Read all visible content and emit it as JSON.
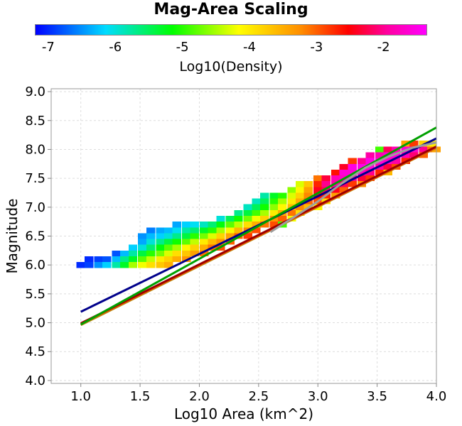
{
  "chart_data": {
    "type": "heatmap",
    "title": "Mag-Area Scaling",
    "xlabel": "Log10 Area (km^2)",
    "ylabel": "Magnitude",
    "xlim": [
      0.75,
      4.0
    ],
    "ylim": [
      3.95,
      9.05
    ],
    "xticks": [
      "1.0",
      "1.5",
      "2.0",
      "2.5",
      "3.0",
      "3.5",
      "4.0"
    ],
    "yticks": [
      "4.0",
      "4.5",
      "5.0",
      "5.5",
      "6.0",
      "6.5",
      "7.0",
      "7.5",
      "8.0",
      "8.5",
      "9.0"
    ],
    "grid": true,
    "colorbar": {
      "label": "Log10(Density)",
      "ticks": [
        "-7",
        "-6",
        "-5",
        "-4",
        "-3",
        "-2"
      ],
      "range": [
        -7.2,
        -1.35
      ]
    },
    "cell_size": {
      "dx": 0.074,
      "dy": 0.1
    },
    "density_cells": [
      [
        1.0,
        6.0,
        -7.0
      ],
      [
        1.07,
        6.0,
        -6.9
      ],
      [
        1.07,
        6.1,
        -7.0
      ],
      [
        1.15,
        6.0,
        -6.5
      ],
      [
        1.15,
        6.1,
        -6.9
      ],
      [
        1.22,
        6.0,
        -6.2
      ],
      [
        1.22,
        6.1,
        -6.8
      ],
      [
        1.3,
        6.0,
        -5.8
      ],
      [
        1.3,
        6.1,
        -6.3
      ],
      [
        1.3,
        6.2,
        -6.8
      ],
      [
        1.37,
        6.0,
        -5.3
      ],
      [
        1.37,
        6.1,
        -5.7
      ],
      [
        1.37,
        6.2,
        -6.3
      ],
      [
        1.44,
        6.0,
        -4.5
      ],
      [
        1.44,
        6.1,
        -5.3
      ],
      [
        1.44,
        6.2,
        -5.8
      ],
      [
        1.44,
        6.3,
        -6.2
      ],
      [
        1.52,
        6.0,
        -4.2
      ],
      [
        1.52,
        6.1,
        -4.8
      ],
      [
        1.52,
        6.2,
        -5.4
      ],
      [
        1.52,
        6.3,
        -6.0
      ],
      [
        1.52,
        6.4,
        -6.4
      ],
      [
        1.52,
        6.5,
        -6.5
      ],
      [
        1.59,
        6.0,
        -3.9
      ],
      [
        1.59,
        6.1,
        -4.4
      ],
      [
        1.59,
        6.2,
        -5.0
      ],
      [
        1.59,
        6.3,
        -5.6
      ],
      [
        1.59,
        6.4,
        -6.0
      ],
      [
        1.59,
        6.5,
        -6.3
      ],
      [
        1.59,
        6.6,
        -6.6
      ],
      [
        1.67,
        6.0,
        -3.7
      ],
      [
        1.67,
        6.1,
        -4.0
      ],
      [
        1.67,
        6.2,
        -4.7
      ],
      [
        1.67,
        6.3,
        -5.2
      ],
      [
        1.67,
        6.4,
        -5.7
      ],
      [
        1.67,
        6.5,
        -6.2
      ],
      [
        1.67,
        6.6,
        -6.4
      ],
      [
        1.74,
        6.0,
        -3.5
      ],
      [
        1.74,
        6.1,
        -3.8
      ],
      [
        1.74,
        6.2,
        -4.3
      ],
      [
        1.74,
        6.3,
        -4.8
      ],
      [
        1.74,
        6.4,
        -5.4
      ],
      [
        1.74,
        6.5,
        -6.0
      ],
      [
        1.74,
        6.6,
        -6.3
      ],
      [
        1.81,
        6.1,
        -3.5
      ],
      [
        1.81,
        6.2,
        -3.9
      ],
      [
        1.81,
        6.3,
        -4.5
      ],
      [
        1.81,
        6.4,
        -5.1
      ],
      [
        1.81,
        6.5,
        -5.7
      ],
      [
        1.81,
        6.6,
        -6.1
      ],
      [
        1.81,
        6.7,
        -6.4
      ],
      [
        1.89,
        6.1,
        -3.3
      ],
      [
        1.89,
        6.2,
        -3.7
      ],
      [
        1.89,
        6.3,
        -4.1
      ],
      [
        1.89,
        6.4,
        -4.8
      ],
      [
        1.89,
        6.5,
        -5.4
      ],
      [
        1.89,
        6.6,
        -5.8
      ],
      [
        1.89,
        6.7,
        -6.2
      ],
      [
        1.96,
        6.2,
        -3.4
      ],
      [
        1.96,
        6.3,
        -3.8
      ],
      [
        1.96,
        6.4,
        -4.4
      ],
      [
        1.96,
        6.5,
        -5.0
      ],
      [
        1.96,
        6.6,
        -5.6
      ],
      [
        1.96,
        6.7,
        -6.1
      ],
      [
        2.04,
        6.2,
        -3.1
      ],
      [
        2.04,
        6.3,
        -3.5
      ],
      [
        2.04,
        6.4,
        -4.0
      ],
      [
        2.04,
        6.5,
        -4.7
      ],
      [
        2.04,
        6.6,
        -5.3
      ],
      [
        2.04,
        6.7,
        -5.9
      ],
      [
        2.11,
        6.3,
        -3.1
      ],
      [
        2.11,
        6.4,
        -3.6
      ],
      [
        2.11,
        6.5,
        -4.3
      ],
      [
        2.11,
        6.6,
        -5.0
      ],
      [
        2.11,
        6.7,
        -5.6
      ],
      [
        2.18,
        6.3,
        -2.9
      ],
      [
        2.18,
        6.4,
        -3.3
      ],
      [
        2.18,
        6.5,
        -3.8
      ],
      [
        2.18,
        6.6,
        -4.5
      ],
      [
        2.18,
        6.7,
        -5.2
      ],
      [
        2.18,
        6.8,
        -6.0
      ],
      [
        2.26,
        6.4,
        -3.0
      ],
      [
        2.26,
        6.5,
        -3.4
      ],
      [
        2.26,
        6.6,
        -4.1
      ],
      [
        2.26,
        6.7,
        -4.8
      ],
      [
        2.26,
        6.8,
        -5.5
      ],
      [
        2.33,
        6.5,
        -3.0
      ],
      [
        2.33,
        6.6,
        -3.6
      ],
      [
        2.33,
        6.7,
        -4.4
      ],
      [
        2.33,
        6.8,
        -5.1
      ],
      [
        2.33,
        6.9,
        -5.7
      ],
      [
        2.41,
        6.5,
        -2.8
      ],
      [
        2.41,
        6.6,
        -3.2
      ],
      [
        2.41,
        6.7,
        -3.9
      ],
      [
        2.41,
        6.8,
        -4.7
      ],
      [
        2.41,
        6.9,
        -5.4
      ],
      [
        2.41,
        7.0,
        -5.9
      ],
      [
        2.48,
        6.6,
        -2.9
      ],
      [
        2.48,
        6.7,
        -3.5
      ],
      [
        2.48,
        6.8,
        -4.2
      ],
      [
        2.48,
        6.9,
        -4.9
      ],
      [
        2.48,
        7.0,
        -5.5
      ],
      [
        2.48,
        7.1,
        -5.9
      ],
      [
        2.55,
        6.7,
        -3.1
      ],
      [
        2.55,
        6.8,
        -3.8
      ],
      [
        2.55,
        6.9,
        -4.5
      ],
      [
        2.55,
        7.0,
        -5.1
      ],
      [
        2.55,
        7.1,
        -5.5
      ],
      [
        2.55,
        7.2,
        -5.8
      ],
      [
        2.63,
        6.7,
        -2.9
      ],
      [
        2.63,
        6.8,
        -3.3
      ],
      [
        2.63,
        6.9,
        -4.0
      ],
      [
        2.63,
        7.0,
        -4.6
      ],
      [
        2.63,
        7.1,
        -5.0
      ],
      [
        2.63,
        7.2,
        -5.3
      ],
      [
        2.7,
        6.7,
        -4.9
      ],
      [
        2.7,
        6.8,
        -3.0
      ],
      [
        2.7,
        6.9,
        -3.5
      ],
      [
        2.7,
        7.0,
        -4.1
      ],
      [
        2.7,
        7.1,
        -4.5
      ],
      [
        2.7,
        7.2,
        -5.0
      ],
      [
        2.78,
        6.8,
        -4.2
      ],
      [
        2.78,
        6.9,
        -3.1
      ],
      [
        2.78,
        7.0,
        -3.6
      ],
      [
        2.78,
        7.1,
        -4.0
      ],
      [
        2.78,
        7.2,
        -4.3
      ],
      [
        2.78,
        7.3,
        -4.6
      ],
      [
        2.85,
        6.9,
        -3.9
      ],
      [
        2.85,
        7.0,
        -3.2
      ],
      [
        2.85,
        7.1,
        -3.5
      ],
      [
        2.85,
        7.2,
        -3.8
      ],
      [
        2.85,
        7.3,
        -4.1
      ],
      [
        2.85,
        7.4,
        -4.3
      ],
      [
        2.92,
        7.0,
        -3.6
      ],
      [
        2.92,
        7.1,
        -3.0
      ],
      [
        2.92,
        7.2,
        -3.2
      ],
      [
        2.92,
        7.3,
        -3.4
      ],
      [
        2.92,
        7.4,
        -3.7
      ],
      [
        3.0,
        7.0,
        -4.1
      ],
      [
        3.0,
        7.1,
        -2.9
      ],
      [
        3.0,
        7.2,
        -2.6
      ],
      [
        3.0,
        7.3,
        -2.4
      ],
      [
        3.0,
        7.4,
        -2.7
      ],
      [
        3.0,
        7.5,
        -3.1
      ],
      [
        3.07,
        7.1,
        -3.9
      ],
      [
        3.07,
        7.2,
        -2.7
      ],
      [
        3.07,
        7.3,
        -2.2
      ],
      [
        3.07,
        7.4,
        -2.0
      ],
      [
        3.07,
        7.5,
        -2.3
      ],
      [
        3.15,
        7.2,
        -3.4
      ],
      [
        3.15,
        7.3,
        -2.4
      ],
      [
        3.15,
        7.4,
        -1.9
      ],
      [
        3.15,
        7.5,
        -1.8
      ],
      [
        3.15,
        7.6,
        -2.6
      ],
      [
        3.22,
        7.3,
        -3.0
      ],
      [
        3.22,
        7.4,
        -2.2
      ],
      [
        3.22,
        7.5,
        -1.7
      ],
      [
        3.22,
        7.6,
        -1.6
      ],
      [
        3.22,
        7.7,
        -2.4
      ],
      [
        3.29,
        7.4,
        -2.8
      ],
      [
        3.29,
        7.5,
        -2.0
      ],
      [
        3.29,
        7.6,
        -1.6
      ],
      [
        3.29,
        7.7,
        -1.5
      ],
      [
        3.29,
        7.8,
        -2.8
      ],
      [
        3.37,
        7.4,
        -3.2
      ],
      [
        3.37,
        7.5,
        -2.3
      ],
      [
        3.37,
        7.6,
        -1.7
      ],
      [
        3.37,
        7.7,
        -1.5
      ],
      [
        3.37,
        7.8,
        -2.0
      ],
      [
        3.44,
        7.5,
        -2.8
      ],
      [
        3.44,
        7.6,
        -2.0
      ],
      [
        3.44,
        7.7,
        -1.6
      ],
      [
        3.44,
        7.8,
        -1.5
      ],
      [
        3.44,
        7.9,
        -1.9
      ],
      [
        3.52,
        7.6,
        -2.7
      ],
      [
        3.52,
        7.7,
        -1.9
      ],
      [
        3.52,
        7.8,
        -1.6
      ],
      [
        3.52,
        7.9,
        -1.8
      ],
      [
        3.52,
        8.0,
        -4.9
      ],
      [
        3.59,
        7.6,
        -3.6
      ],
      [
        3.59,
        7.7,
        -2.3
      ],
      [
        3.59,
        7.8,
        -1.7
      ],
      [
        3.59,
        7.9,
        -1.6
      ],
      [
        3.59,
        8.0,
        -2.2
      ],
      [
        3.66,
        7.7,
        -2.9
      ],
      [
        3.66,
        7.8,
        -1.9
      ],
      [
        3.66,
        7.9,
        -1.6
      ],
      [
        3.66,
        8.0,
        -1.8
      ],
      [
        3.74,
        7.8,
        -2.7
      ],
      [
        3.74,
        7.9,
        -1.8
      ],
      [
        3.74,
        8.0,
        -1.6
      ],
      [
        3.74,
        8.1,
        -3.4
      ],
      [
        3.81,
        7.9,
        -2.1
      ],
      [
        3.81,
        8.0,
        -1.7
      ],
      [
        3.81,
        8.1,
        -2.8
      ],
      [
        3.89,
        7.9,
        -3.0
      ],
      [
        3.89,
        8.0,
        -2.0
      ],
      [
        3.89,
        8.1,
        -3.8
      ],
      [
        3.96,
        8.0,
        -3.1
      ],
      [
        3.96,
        8.1,
        -4.0
      ],
      [
        4.0,
        8.0,
        -3.4
      ]
    ],
    "series": [
      {
        "color": "#00008b",
        "x": [
          1.0,
          4.0
        ],
        "y": [
          5.19,
          8.19
        ]
      },
      {
        "color": "#b8860b",
        "x": [
          1.0,
          4.0
        ],
        "y": [
          4.96,
          8.03
        ]
      },
      {
        "color": "#ff4500",
        "x": [
          1.0,
          4.0
        ],
        "y": [
          4.98,
          8.04
        ]
      },
      {
        "color": "#9b0000",
        "x": [
          1.0,
          4.0
        ],
        "y": [
          4.99,
          8.05
        ]
      },
      {
        "color": "#00a000",
        "x": [
          1.0,
          4.0
        ],
        "y": [
          4.97,
          8.38
        ]
      },
      {
        "color": "#9e9e9e",
        "x": [
          2.6,
          2.8,
          3.0,
          3.2,
          3.4,
          3.6,
          3.8,
          4.0
        ],
        "y": [
          6.57,
          6.83,
          7.1,
          7.41,
          7.68,
          7.88,
          8.03,
          8.12
        ]
      }
    ]
  }
}
